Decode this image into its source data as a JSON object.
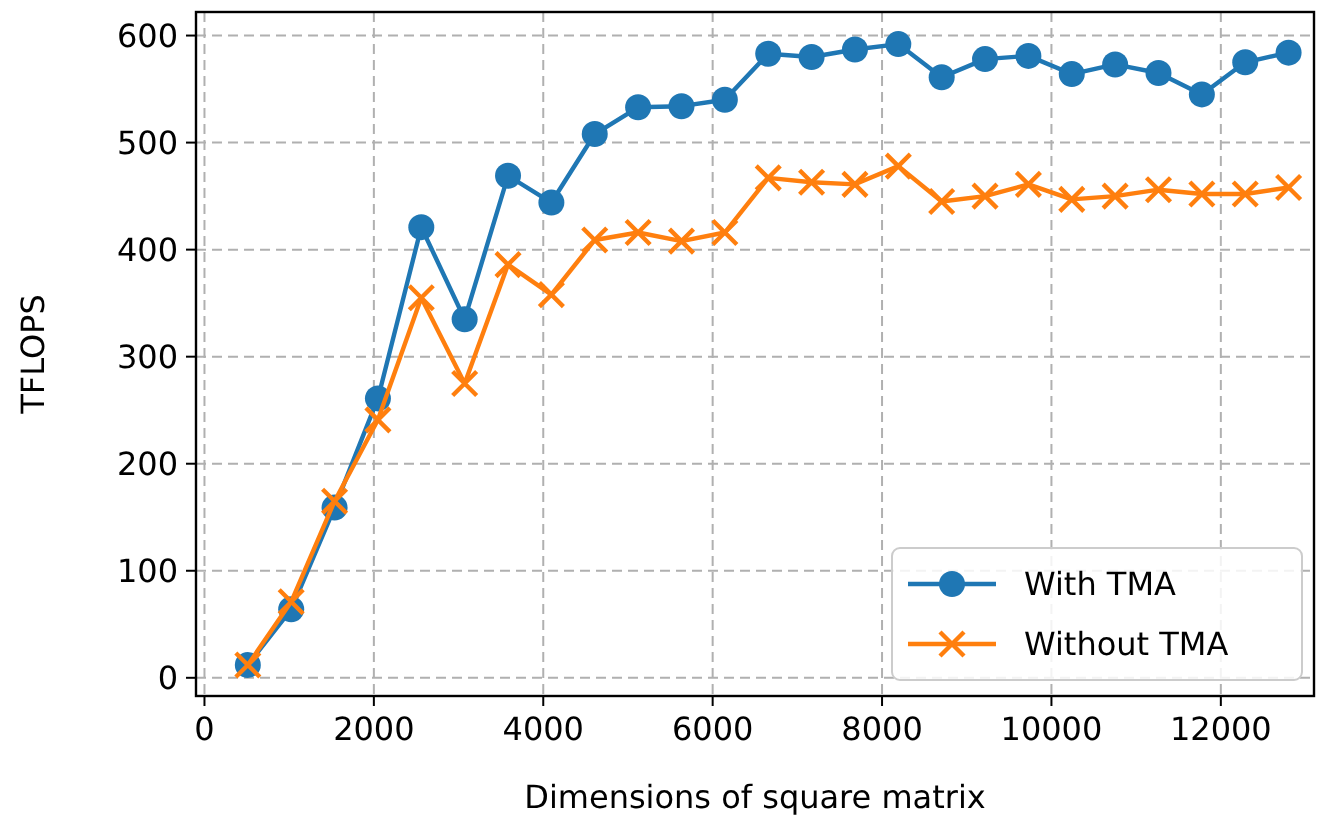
{
  "chart_data": {
    "type": "line",
    "xlabel": "Dimensions of square matrix",
    "ylabel": "TFLOPS",
    "x": [
      512,
      1024,
      1536,
      2048,
      2560,
      3072,
      3584,
      4096,
      4608,
      5120,
      5632,
      6144,
      6656,
      7168,
      7680,
      8192,
      8704,
      9216,
      9728,
      10240,
      10752,
      11264,
      11776,
      12288,
      12800
    ],
    "series": [
      {
        "name": "With TMA",
        "color": "#1f77b4",
        "marker": "circle",
        "values": [
          12,
          64,
          159,
          261,
          421,
          335,
          469,
          444,
          508,
          533,
          534,
          540,
          583,
          580,
          587,
          592,
          561,
          578,
          581,
          564,
          573,
          565,
          545,
          575,
          584
        ]
      },
      {
        "name": "Without TMA",
        "color": "#ff7f0e",
        "marker": "cross",
        "values": [
          12,
          71,
          165,
          241,
          355,
          275,
          386,
          358,
          409,
          416,
          408,
          416,
          467,
          463,
          461,
          478,
          445,
          450,
          461,
          447,
          450,
          456,
          452,
          452,
          458
        ]
      }
    ],
    "xlim": [
      -100,
      13100
    ],
    "xticks": [
      0,
      2000,
      4000,
      6000,
      8000,
      10000,
      12000
    ],
    "ylim": [
      -17,
      622
    ],
    "yticks": [
      0,
      100,
      200,
      300,
      400,
      500,
      600
    ],
    "grid": true,
    "legend": "bottom right",
    "line_style": "solid"
  }
}
